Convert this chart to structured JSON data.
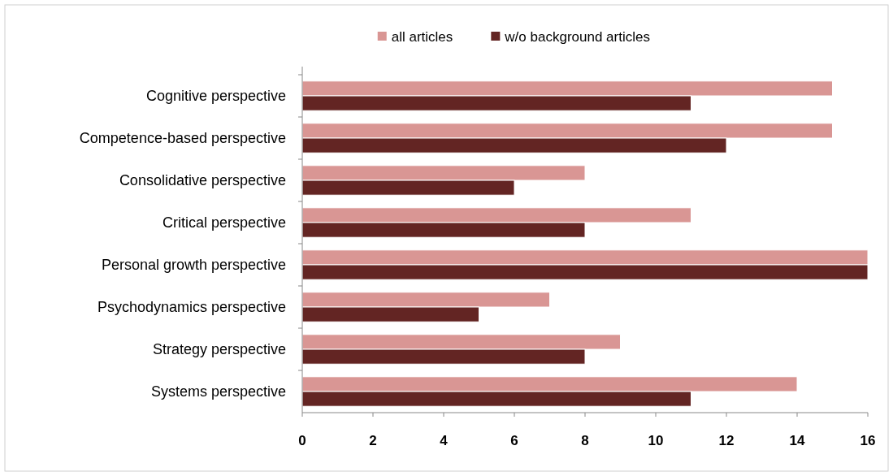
{
  "chart_data": {
    "type": "bar",
    "orientation": "horizontal",
    "categories": [
      "Cognitive perspective",
      "Competence-based perspective",
      "Consolidative perspective",
      "Critical perspective",
      "Personal growth perspective",
      "Psychodynamics perspective",
      "Strategy perspective",
      "Systems perspective"
    ],
    "series": [
      {
        "name": "all articles",
        "color": "#d99694",
        "values": [
          15,
          15,
          8,
          11,
          16,
          7,
          9,
          14
        ]
      },
      {
        "name": "w/o background articles",
        "color": "#632523",
        "values": [
          11,
          12,
          6,
          8,
          16,
          5,
          8,
          11
        ]
      }
    ],
    "xlim": [
      0,
      16
    ],
    "xticks": [
      0,
      2,
      4,
      6,
      8,
      10,
      12,
      14,
      16
    ],
    "legend": "top",
    "grid": false
  }
}
